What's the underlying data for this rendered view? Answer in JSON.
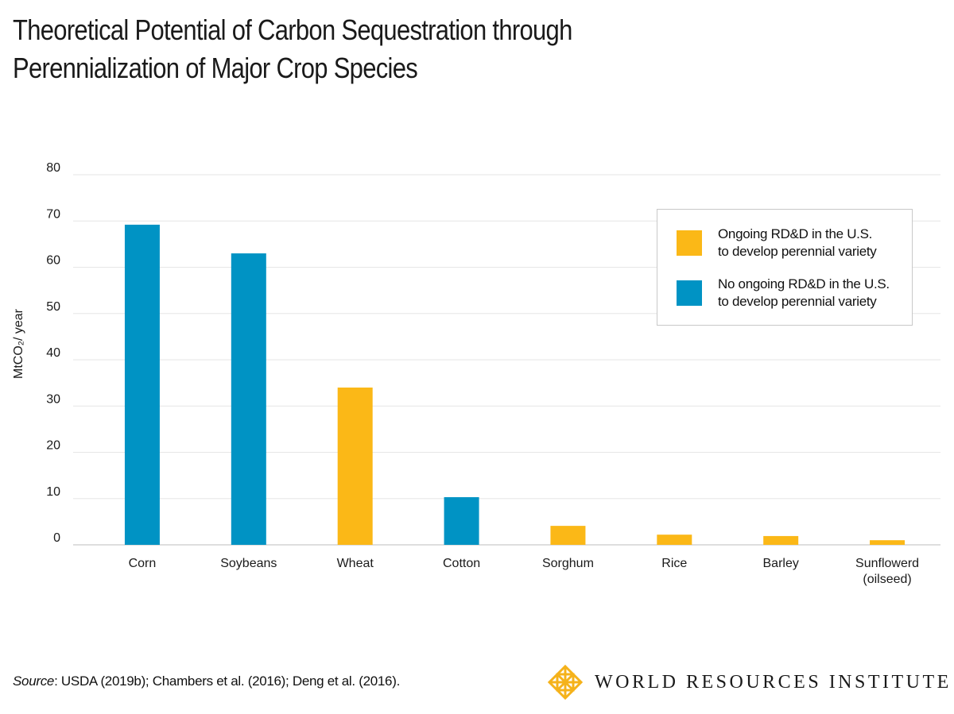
{
  "chart_data": {
    "type": "bar",
    "title": "Theoretical Potential of Carbon Sequestration through\nPerennialization of Major Crop Species",
    "y_label": "MtCO₂/ year",
    "categories": [
      "Corn",
      "Soybeans",
      "Wheat",
      "Cotton",
      "Sorghum",
      "Rice",
      "Barley",
      "Sunflowerd\n(oilseed)"
    ],
    "series": [
      {
        "name": "Ongoing RD&D in the U.S.\nto develop perennial variety",
        "color": "#fbb817",
        "values": [
          null,
          null,
          34.0,
          null,
          4.1,
          2.2,
          1.9,
          1.0
        ]
      },
      {
        "name": "No ongoing RD&D in the U.S.\nto develop perennial variety",
        "color": "#0093c4",
        "values": [
          69.2,
          63.0,
          null,
          10.3,
          null,
          null,
          null,
          null
        ]
      }
    ],
    "ylim": [
      0,
      80
    ],
    "yticks": [
      0,
      10,
      20,
      30,
      40,
      50,
      60,
      70,
      80
    ],
    "grid": true,
    "legend": "upper-right"
  },
  "source": {
    "label": "Source",
    "text": ": USDA (2019b); Chambers et al. (2016); Deng et al. (2016)."
  },
  "logo": {
    "text": "WORLD RESOURCES INSTITUTE"
  }
}
